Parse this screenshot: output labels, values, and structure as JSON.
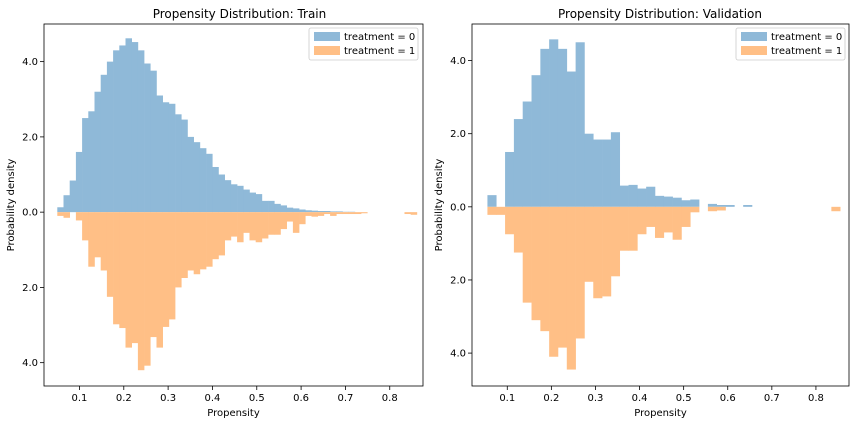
{
  "colors": {
    "treatment_0": "#8fb9d8",
    "treatment_1": "#ffbf86"
  },
  "chart_data": [
    {
      "type": "bar",
      "title": "Propensity Distribution: Train",
      "xlabel": "Propensity",
      "ylabel": "Probability density",
      "xlim": [
        0.02,
        0.875
      ],
      "ylim": [
        -4.62,
        5.0
      ],
      "xticks": [
        0.1,
        0.2,
        0.3,
        0.4,
        0.5,
        0.6,
        0.7,
        0.8
      ],
      "xtick_labels": [
        "0.1",
        "0.2",
        "0.3",
        "0.4",
        "0.5",
        "0.6",
        "0.7",
        "0.8"
      ],
      "yticks": [
        4,
        2,
        0,
        -2,
        -4
      ],
      "ytick_labels": [
        "4.0",
        "2.0",
        "0.0",
        "2.0",
        "4.0"
      ],
      "legend": {
        "placement": "top-right",
        "entries": [
          "treatment = 0",
          "treatment = 1"
        ]
      },
      "bin_edges": [
        0.05,
        0.8612
      ],
      "series": [
        {
          "name": "treatment = 0",
          "direction": "up",
          "values": [
            0.13,
            0.45,
            0.84,
            1.6,
            2.5,
            2.68,
            3.2,
            3.65,
            4.0,
            4.3,
            4.43,
            4.62,
            4.52,
            4.3,
            3.95,
            3.76,
            3.1,
            2.92,
            2.88,
            2.6,
            2.46,
            2.0,
            1.86,
            1.7,
            1.55,
            1.2,
            1.0,
            0.85,
            0.74,
            0.7,
            0.6,
            0.52,
            0.48,
            0.3,
            0.3,
            0.22,
            0.18,
            0.12,
            0.1,
            0.07,
            0.05,
            0.04,
            0.03,
            0.03,
            0.02,
            0.02,
            0.01,
            0.01,
            0.0,
            0.0,
            0.0,
            0.0,
            0.0,
            0.0,
            0.0,
            0.0,
            0.0,
            0.0
          ]
        },
        {
          "name": "treatment = 1",
          "direction": "down",
          "values": [
            0.1,
            0.15,
            0.0,
            0.22,
            0.75,
            1.45,
            1.2,
            1.55,
            2.25,
            2.98,
            3.08,
            3.6,
            3.48,
            4.2,
            4.08,
            3.32,
            3.6,
            3.05,
            2.85,
            2.0,
            1.75,
            1.55,
            1.65,
            1.52,
            1.45,
            1.25,
            1.15,
            0.75,
            0.65,
            0.8,
            0.55,
            0.75,
            0.8,
            0.7,
            0.6,
            0.6,
            0.45,
            0.25,
            0.55,
            0.32,
            0.1,
            0.12,
            0.1,
            0.05,
            0.1,
            0.05,
            0.05,
            0.05,
            0.05,
            0.03,
            0.0,
            0.0,
            0.0,
            0.0,
            0.0,
            0.0,
            0.05,
            0.07
          ]
        }
      ]
    },
    {
      "type": "bar",
      "title": "Propensity Distribution: Validation",
      "xlabel": "Propensity",
      "ylabel": "Probability density",
      "xlim": [
        0.02,
        0.875
      ],
      "ylim": [
        -4.9,
        5.0
      ],
      "xticks": [
        0.1,
        0.2,
        0.3,
        0.4,
        0.5,
        0.6,
        0.7,
        0.8
      ],
      "xtick_labels": [
        "0.1",
        "0.2",
        "0.3",
        "0.4",
        "0.5",
        "0.6",
        "0.7",
        "0.8"
      ],
      "yticks": [
        4,
        2,
        0,
        -2,
        -4
      ],
      "ytick_labels": [
        "4.0",
        "2.0",
        "0.0",
        "2.0",
        "4.0"
      ],
      "legend": {
        "placement": "top-right",
        "entries": [
          "treatment = 0",
          "treatment = 1"
        ]
      },
      "bin_edges": [
        0.055,
        0.855
      ],
      "series": [
        {
          "name": "treatment = 0",
          "direction": "up",
          "values": [
            0.32,
            0.0,
            1.5,
            2.4,
            2.88,
            3.6,
            4.32,
            4.58,
            4.32,
            3.7,
            4.5,
            2.0,
            1.84,
            1.84,
            2.04,
            0.58,
            0.6,
            0.5,
            0.55,
            0.3,
            0.28,
            0.25,
            0.18,
            0.2,
            0.0,
            0.08,
            0.05,
            0.05,
            0.0,
            0.05,
            0.0,
            0.0,
            0.0,
            0.0,
            0.0,
            0.0,
            0.0,
            0.0,
            0.0,
            0.0
          ]
        },
        {
          "name": "treatment = 1",
          "direction": "down",
          "values": [
            0.22,
            0.22,
            0.75,
            1.25,
            2.62,
            3.1,
            3.4,
            4.1,
            3.85,
            4.45,
            3.6,
            2.05,
            2.5,
            2.45,
            1.9,
            1.2,
            1.2,
            0.75,
            0.55,
            0.85,
            0.7,
            0.9,
            0.55,
            0.15,
            0.0,
            0.12,
            0.1,
            0.0,
            0.0,
            0.0,
            0.0,
            0.0,
            0.0,
            0.0,
            0.0,
            0.0,
            0.0,
            0.0,
            0.0,
            0.12
          ]
        }
      ]
    }
  ]
}
